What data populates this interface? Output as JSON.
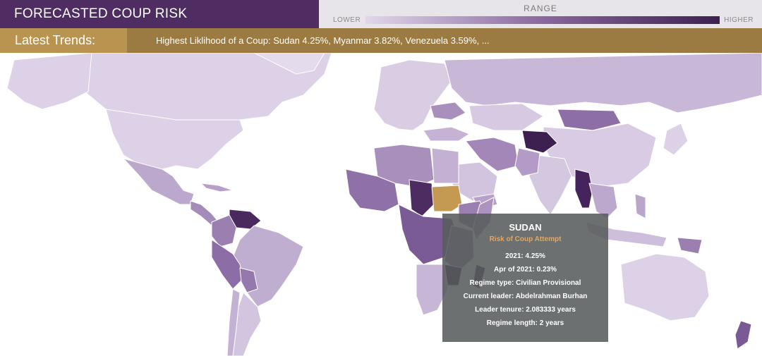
{
  "header": {
    "title": "FORECASTED COUP RISK"
  },
  "legend": {
    "title": "RANGE",
    "lower": "LOWER",
    "higher": "HIGHER",
    "color_low": "#e1d7ea",
    "color_mid": "#8a679e",
    "color_high": "#3e2050"
  },
  "trends": {
    "label": "Latest Trends:",
    "text": "Highest Liklihood of a Coup: Sudan 4.25%, Myanmar 3.82%, Venezuela 3.59%, ..."
  },
  "map": {
    "water_color": "#ffffff",
    "selected_color": "#c49a52",
    "selected_country": "Sudan"
  },
  "tooltip": {
    "country": "SUDAN",
    "subtitle": "Risk of Coup Attempt",
    "rows": [
      "2021:  4.25%",
      "Apr of 2021:  0.23%",
      "Regime type:  Civilian Provisional",
      "Current leader:  Abdelrahman Burhan",
      "Leader tenure:  2.083333 years",
      "Regime length:  2 years"
    ]
  }
}
